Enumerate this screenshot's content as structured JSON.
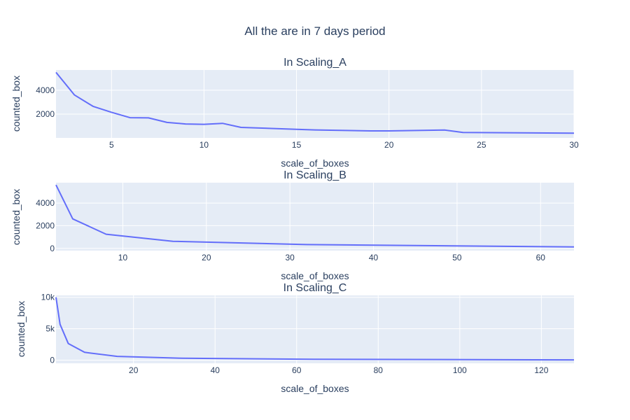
{
  "chart_data": {
    "title": "All the are in 7 days period",
    "subplots": [
      {
        "type": "line",
        "title": "In Scaling_A",
        "xlabel": "scale_of_boxes",
        "ylabel": "counted_box",
        "xlim": [
          2,
          30
        ],
        "ylim": [
          0,
          5700
        ],
        "xticks": [
          5,
          10,
          15,
          20,
          25,
          30
        ],
        "yticks": [
          2000,
          4000
        ],
        "ytick_labels": [
          "2000",
          "4000"
        ],
        "x": [
          2,
          3,
          4,
          5,
          6,
          7,
          8,
          9,
          10,
          11,
          12,
          15,
          16,
          19,
          20,
          23,
          24,
          30
        ],
        "y": [
          5500,
          3600,
          2650,
          2150,
          1700,
          1680,
          1300,
          1170,
          1140,
          1220,
          880,
          720,
          670,
          590,
          590,
          660,
          460,
          400
        ]
      },
      {
        "type": "line",
        "title": "In Scaling_B",
        "xlabel": "scale_of_boxes",
        "ylabel": "counted_box",
        "xlim": [
          2,
          64
        ],
        "ylim": [
          -200,
          5800
        ],
        "xticks": [
          10,
          20,
          30,
          40,
          50,
          60
        ],
        "yticks": [
          0,
          2000,
          4000
        ],
        "ytick_labels": [
          "0",
          "2000",
          "4000"
        ],
        "x": [
          2,
          4,
          8,
          16,
          32,
          64
        ],
        "y": [
          5600,
          2600,
          1250,
          620,
          330,
          130
        ]
      },
      {
        "type": "line",
        "title": "In Scaling_C",
        "xlabel": "scale_of_boxes",
        "ylabel": "counted_box",
        "xlim": [
          1,
          128
        ],
        "ylim": [
          -500,
          10300
        ],
        "xticks": [
          20,
          40,
          60,
          80,
          100,
          120
        ],
        "yticks": [
          0,
          5000,
          10000
        ],
        "ytick_labels": [
          "0",
          "5k",
          "10k"
        ],
        "x": [
          1,
          2,
          4,
          8,
          16,
          32,
          64,
          128
        ],
        "y": [
          10000,
          5700,
          2650,
          1250,
          600,
          300,
          150,
          50
        ]
      }
    ]
  },
  "colors": {
    "line": "#636efa",
    "plot_bg": "#e5ecf6",
    "grid": "#ffffff",
    "text": "#2a3f5f"
  }
}
